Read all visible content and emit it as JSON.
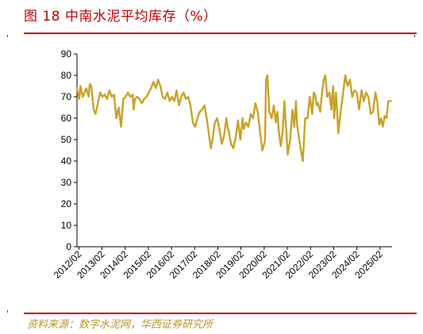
{
  "title": "图 18 中南水泥平均库存（%）",
  "source": "资料来源：数字水泥网，华西证券研究所",
  "colors": {
    "accent": "#c00000",
    "series": "#c9a227",
    "source_text": "#b8952e"
  },
  "chart_data": {
    "type": "line",
    "title": "",
    "xlabel": "",
    "ylabel": "",
    "ylim": [
      0,
      90
    ],
    "yticks": [
      0,
      10,
      20,
      30,
      40,
      50,
      60,
      70,
      80,
      90
    ],
    "xlim": [
      2012.0,
      2025.6
    ],
    "xtick_labels": [
      "2012/02",
      "2013/02",
      "2014/02",
      "2015/02",
      "2016/02",
      "2017/02",
      "2018/02",
      "2019/02",
      "2020/02",
      "2021/02",
      "2022/02",
      "2023/02",
      "2024/02",
      "2025/02"
    ],
    "xtick_positions": [
      2012.08,
      2013.08,
      2014.08,
      2015.08,
      2016.08,
      2017.08,
      2018.08,
      2019.08,
      2020.08,
      2021.08,
      2022.08,
      2023.08,
      2024.08,
      2025.08
    ],
    "grid": false,
    "legend": "none",
    "series": [
      {
        "x": [
          2012.0,
          2012.1,
          2012.15,
          2012.25,
          2012.4,
          2012.5,
          2012.55,
          2012.62,
          2012.72,
          2012.8,
          2012.9,
          2013.0,
          2013.1,
          2013.2,
          2013.3,
          2013.4,
          2013.5,
          2013.6,
          2013.7,
          2013.8,
          2013.9,
          2014.0,
          2014.1,
          2014.2,
          2014.3,
          2014.4,
          2014.45,
          2014.5,
          2014.6,
          2014.7,
          2014.8,
          2014.9,
          2015.0,
          2015.1,
          2015.2,
          2015.3,
          2015.4,
          2015.5,
          2015.6,
          2015.7,
          2015.8,
          2015.9,
          2016.0,
          2016.1,
          2016.2,
          2016.3,
          2016.4,
          2016.5,
          2016.6,
          2016.7,
          2016.8,
          2016.9,
          2017.0,
          2017.1,
          2017.2,
          2017.3,
          2017.4,
          2017.5,
          2017.6,
          2017.7,
          2017.78,
          2017.85,
          2017.95,
          2018.05,
          2018.15,
          2018.25,
          2018.35,
          2018.45,
          2018.5,
          2018.55,
          2018.65,
          2018.75,
          2018.85,
          2018.95,
          2019.05,
          2019.15,
          2019.2,
          2019.3,
          2019.4,
          2019.5,
          2019.6,
          2019.7,
          2019.8,
          2019.9,
          2020.0,
          2020.08,
          2020.12,
          2020.16,
          2020.22,
          2020.3,
          2020.4,
          2020.5,
          2020.58,
          2020.65,
          2020.72,
          2020.8,
          2020.88,
          2020.95,
          2021.0,
          2021.1,
          2021.2,
          2021.3,
          2021.38,
          2021.45,
          2021.5,
          2021.58,
          2021.65,
          2021.75,
          2021.85,
          2021.95,
          2022.05,
          2022.15,
          2022.22,
          2022.28,
          2022.35,
          2022.4,
          2022.5,
          2022.58,
          2022.65,
          2022.72,
          2022.8,
          2022.9,
          2022.98,
          2023.02,
          2023.06,
          2023.1,
          2023.18,
          2023.28,
          2023.38,
          2023.48,
          2023.58,
          2023.68,
          2023.78,
          2023.88,
          2023.98,
          2024.08,
          2024.18,
          2024.28,
          2024.38,
          2024.48,
          2024.58,
          2024.68,
          2024.78,
          2024.88,
          2024.96,
          2025.05,
          2025.12,
          2025.2,
          2025.28,
          2025.36,
          2025.44,
          2025.55
        ],
        "y": [
          74,
          69,
          75,
          70,
          74,
          70,
          76,
          75,
          64,
          62,
          67,
          72,
          70,
          71,
          69,
          73,
          70,
          71,
          60,
          65,
          56,
          69,
          70,
          72,
          70,
          71,
          64,
          69,
          70,
          69,
          67,
          69,
          70,
          72,
          74,
          77,
          74,
          78,
          75,
          70,
          69,
          72,
          68,
          70,
          68,
          73,
          66,
          70,
          72,
          69,
          70,
          66,
          58,
          56,
          60,
          63,
          64,
          66,
          60,
          52,
          46,
          50,
          58,
          60,
          55,
          48,
          52,
          60,
          56,
          54,
          48,
          46,
          51,
          59,
          50,
          60,
          55,
          58,
          56,
          62,
          60,
          67,
          63,
          54,
          45,
          48,
          50,
          78,
          80,
          63,
          60,
          66,
          58,
          63,
          53,
          47,
          54,
          68,
          60,
          43,
          50,
          64,
          56,
          68,
          57,
          51,
          46,
          40,
          60,
          60,
          70,
          62,
          72,
          71,
          66,
          67,
          63,
          72,
          78,
          80,
          70,
          72,
          64,
          71,
          75,
          60,
          72,
          53,
          63,
          71,
          80,
          75,
          78,
          70,
          73,
          72,
          64,
          73,
          68,
          72,
          70,
          62,
          63,
          72,
          68,
          57,
          60,
          56,
          61,
          60,
          68,
          68
        ]
      }
    ]
  }
}
